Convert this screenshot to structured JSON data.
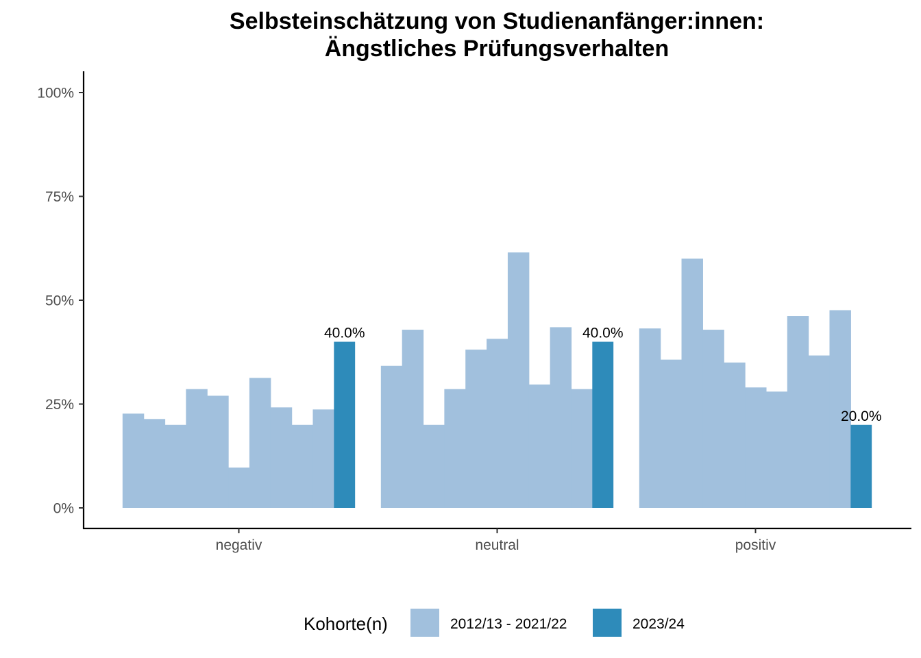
{
  "chart_data": {
    "type": "bar",
    "title_lines": [
      "Selbsteinschätzung von Studienanfänger:innen:",
      "Ängstliches Prüfungsverhalten"
    ],
    "xlabel": "",
    "ylabel": "",
    "ylim": [
      0,
      1
    ],
    "y_ticks": [
      {
        "value": 0,
        "label": "0%"
      },
      {
        "value": 0.25,
        "label": "25%"
      },
      {
        "value": 0.5,
        "label": "50%"
      },
      {
        "value": 0.75,
        "label": "75%"
      },
      {
        "value": 1.0,
        "label": "100%"
      }
    ],
    "categories": [
      "negativ",
      "neutral",
      "positiv"
    ],
    "grid": false,
    "legend": {
      "title": "Kohorte(n)",
      "placement": "bottom",
      "entries": [
        {
          "label": "2012/13 - 2021/22",
          "color": "#a1c0dd"
        },
        {
          "label": "2023/24",
          "color": "#2e8bba"
        }
      ]
    },
    "series": [
      {
        "legend_label": "2012/13 - 2021/22",
        "color": "#a1c0dd",
        "values_by_category": [
          [
            0.227,
            0.214,
            0.2,
            0.286,
            0.27,
            0.097,
            0.313,
            0.242,
            0.2,
            0.237
          ],
          [
            0.342,
            0.429,
            0.2,
            0.286,
            0.381,
            0.407,
            0.615,
            0.297,
            0.435,
            0.286
          ],
          [
            0.432,
            0.357,
            0.6,
            0.429,
            0.35,
            0.29,
            0.28,
            0.462,
            0.367,
            0.476
          ]
        ]
      },
      {
        "legend_label": "2023/24",
        "color": "#2e8bba",
        "values": [
          0.4,
          0.4,
          0.2
        ],
        "labels": [
          "40.0%",
          "40.0%",
          "20.0%"
        ]
      }
    ]
  }
}
